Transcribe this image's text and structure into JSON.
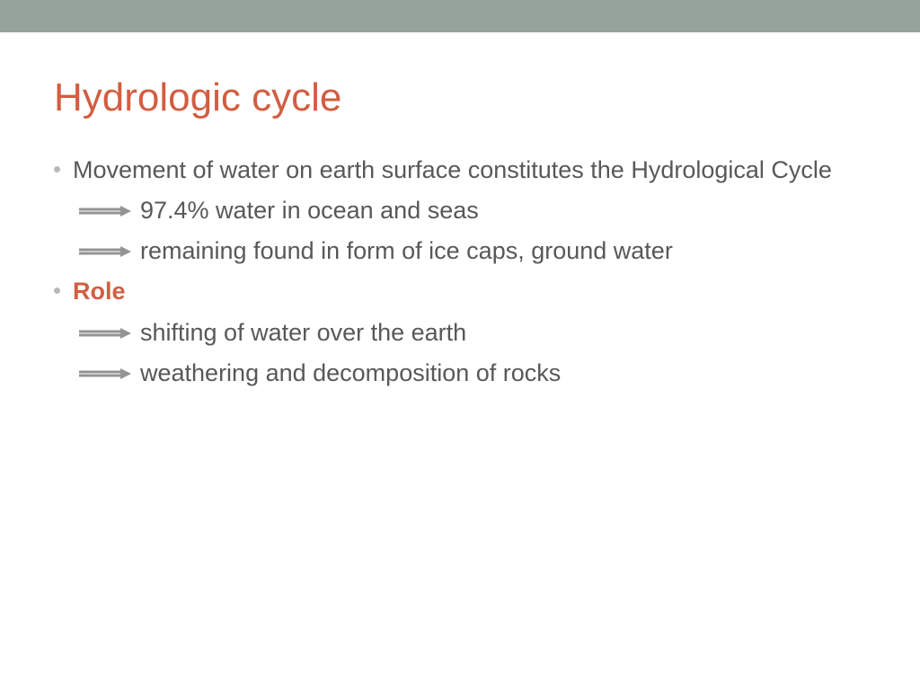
{
  "colors": {
    "top_bar": "#95a39c",
    "title": "#d25e42",
    "body_text": "#585858",
    "bullet_dot": "#b9b9b9",
    "arrow": "#939393",
    "role": "#d25e42"
  },
  "title": "Hydrologic cycle",
  "items": [
    {
      "type": "dot",
      "text": "Movement of water on earth surface constitutes the Hydrological Cycle",
      "highlight": false
    },
    {
      "type": "arrow",
      "text": "97.4% water in ocean and seas",
      "highlight": false
    },
    {
      "type": "arrow",
      "text": "remaining found in form of ice caps, ground water",
      "highlight": false
    },
    {
      "type": "dot",
      "text": "Role",
      "highlight": true
    },
    {
      "type": "arrow",
      "text": "shifting of water over the earth",
      "highlight": false
    },
    {
      "type": "arrow",
      "text": "weathering and decomposition of rocks",
      "highlight": false
    }
  ]
}
